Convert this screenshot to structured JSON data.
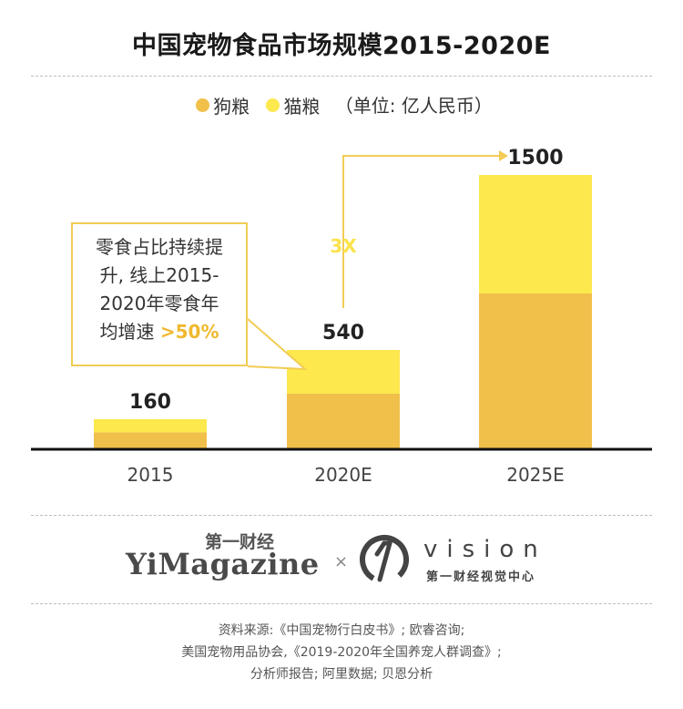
{
  "title": "中国宠物食品市场规模2015-2020E",
  "legend": {
    "items": [
      {
        "label": "狗粮",
        "color": "#f0c04a"
      },
      {
        "label": "猫粮",
        "color": "#fde84e"
      }
    ],
    "unit_note": "（单位: 亿人民币）"
  },
  "annotation": {
    "lines": [
      "零食占比持续提",
      "升, 线上2015-",
      "2020年零食年"
    ],
    "last_prefix": "均增速 ",
    "highlight": ">50%"
  },
  "growth_label": "3X",
  "chart_data": {
    "type": "bar",
    "stacked": true,
    "categories": [
      "2015",
      "2020E",
      "2025E"
    ],
    "totals": [
      160,
      540,
      1500
    ],
    "series": [
      {
        "name": "狗粮",
        "values": [
          88,
          300,
          850
        ],
        "color": "#f0c04a"
      },
      {
        "name": "猫粮",
        "values": [
          72,
          240,
          650
        ],
        "color": "#fde84e"
      }
    ],
    "ylim": [
      0,
      1500
    ],
    "grid": false,
    "legend_position": "top"
  },
  "branding": {
    "yimagazine_cn": "第一财经",
    "yimagazine_en": "YiMagazine",
    "separator": "×",
    "vision_word": "vision",
    "vision_cn": "第一财经视觉中心"
  },
  "source_lines": [
    "资料来源:《中国宠物行白皮书》; 欧睿咨询;",
    "美国宠物用品协会,《2019-2020年全国养宠人群调查》;",
    "分析师报告; 阿里数据; 贝恩分析"
  ]
}
